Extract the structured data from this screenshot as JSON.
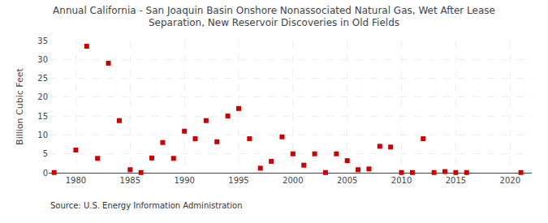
{
  "chart_data": {
    "type": "scatter",
    "title": "Annual California - San Joaquin Basin Onshore Nonassociated Natural Gas, Wet After Lease\nSeparation, New Reservoir Discoveries in Old Fields",
    "ylabel": "Billion Cubic Feet",
    "annotations": [
      "Source: U.S. Energy Information Administration"
    ],
    "x": [
      1978,
      1980,
      1981,
      1982,
      1983,
      1984,
      1985,
      1986,
      1987,
      1988,
      1989,
      1990,
      1991,
      1992,
      1993,
      1994,
      1995,
      1996,
      1997,
      1998,
      1999,
      2000,
      2001,
      2002,
      2003,
      2004,
      2005,
      2006,
      2007,
      2008,
      2009,
      2010,
      2011,
      2012,
      2013,
      2014,
      2015,
      2016,
      2021
    ],
    "values": [
      0.05,
      6.0,
      33.5,
      3.8,
      29.0,
      13.8,
      0.8,
      0.05,
      3.9,
      8.0,
      3.8,
      11.0,
      9.0,
      13.8,
      8.2,
      15.0,
      17.0,
      9.0,
      1.2,
      3.0,
      9.5,
      5.0,
      2.0,
      5.0,
      0.05,
      5.0,
      3.2,
      0.8,
      1.0,
      7.0,
      6.8,
      0.05,
      0.05,
      9.0,
      0.05,
      0.3,
      0.05,
      0.05,
      0.05
    ],
    "color": "#cc0000",
    "marker": "square",
    "xlim": [
      1977.5,
      2022
    ],
    "ylim": [
      0,
      35
    ],
    "xticks": [
      1980,
      1985,
      1990,
      1995,
      2000,
      2005,
      2010,
      2015,
      2020
    ],
    "yticks": [
      0,
      5,
      10,
      15,
      20,
      25,
      30,
      35
    ],
    "grid": true
  }
}
